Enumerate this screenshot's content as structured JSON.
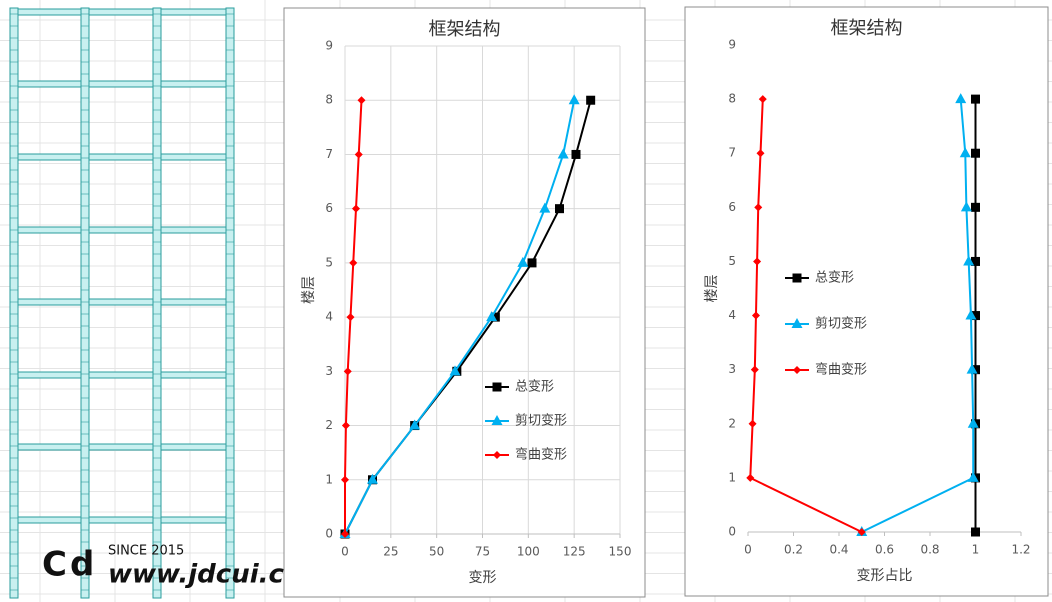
{
  "watermark": {
    "since": "SINCE 2015",
    "site": "www.jdcui.com"
  },
  "chart_data": [
    {
      "type": "line",
      "title": "框架结构",
      "xlabel": "变形",
      "ylabel": "楼层",
      "xlim": [
        0,
        150
      ],
      "xticks": [
        0,
        25,
        50,
        75,
        100,
        125,
        150
      ],
      "ylim": [
        0,
        9
      ],
      "yticks": [
        0,
        1,
        2,
        3,
        4,
        5,
        6,
        7,
        8,
        9
      ],
      "grid": true,
      "legend": "lower right",
      "series": [
        {
          "name": "总变形",
          "color": "#000000",
          "marker": "square",
          "x": [
            0,
            15,
            38,
            61,
            82,
            102,
            117,
            126,
            134
          ],
          "values": [
            0,
            1,
            2,
            3,
            4,
            5,
            6,
            7,
            8
          ]
        },
        {
          "name": "剪切变形",
          "color": "#00b0f0",
          "marker": "triangle",
          "x": [
            0,
            15,
            38,
            60,
            80,
            97,
            109,
            119,
            125
          ],
          "values": [
            0,
            1,
            2,
            3,
            4,
            5,
            6,
            7,
            8
          ]
        },
        {
          "name": "弯曲变形",
          "color": "#ff0000",
          "marker": "diamond",
          "x": [
            0,
            0,
            0.5,
            1.5,
            3,
            4.5,
            6,
            7.5,
            9
          ],
          "values": [
            0,
            1,
            2,
            3,
            4,
            5,
            6,
            7,
            8
          ]
        }
      ]
    },
    {
      "type": "line",
      "title": "框架结构",
      "xlabel": "变形占比",
      "ylabel": "楼层",
      "xlim": [
        0,
        1.2
      ],
      "xticks": [
        0,
        0.2,
        0.4,
        0.6,
        0.8,
        1,
        1.2
      ],
      "ylim": [
        0,
        9
      ],
      "yticks": [
        0,
        1,
        2,
        3,
        4,
        5,
        6,
        7,
        8,
        9
      ],
      "grid": false,
      "legend": "center left",
      "series": [
        {
          "name": "总变形",
          "color": "#000000",
          "marker": "square",
          "x": [
            1,
            1,
            1,
            1,
            1,
            1,
            1,
            1,
            1
          ],
          "values": [
            0,
            1,
            2,
            3,
            4,
            5,
            6,
            7,
            8
          ]
        },
        {
          "name": "剪切变形",
          "color": "#00b0f0",
          "marker": "triangle",
          "x": [
            0.5,
            0.99,
            0.99,
            0.985,
            0.98,
            0.97,
            0.96,
            0.955,
            0.935
          ],
          "values": [
            0,
            1,
            2,
            3,
            4,
            5,
            6,
            7,
            8
          ]
        },
        {
          "name": "弯曲变形",
          "color": "#ff0000",
          "marker": "diamond",
          "x": [
            0.5,
            0.01,
            0.02,
            0.03,
            0.035,
            0.04,
            0.045,
            0.055,
            0.065
          ],
          "values": [
            0,
            1,
            2,
            3,
            4,
            5,
            6,
            7,
            8
          ]
        }
      ]
    }
  ]
}
